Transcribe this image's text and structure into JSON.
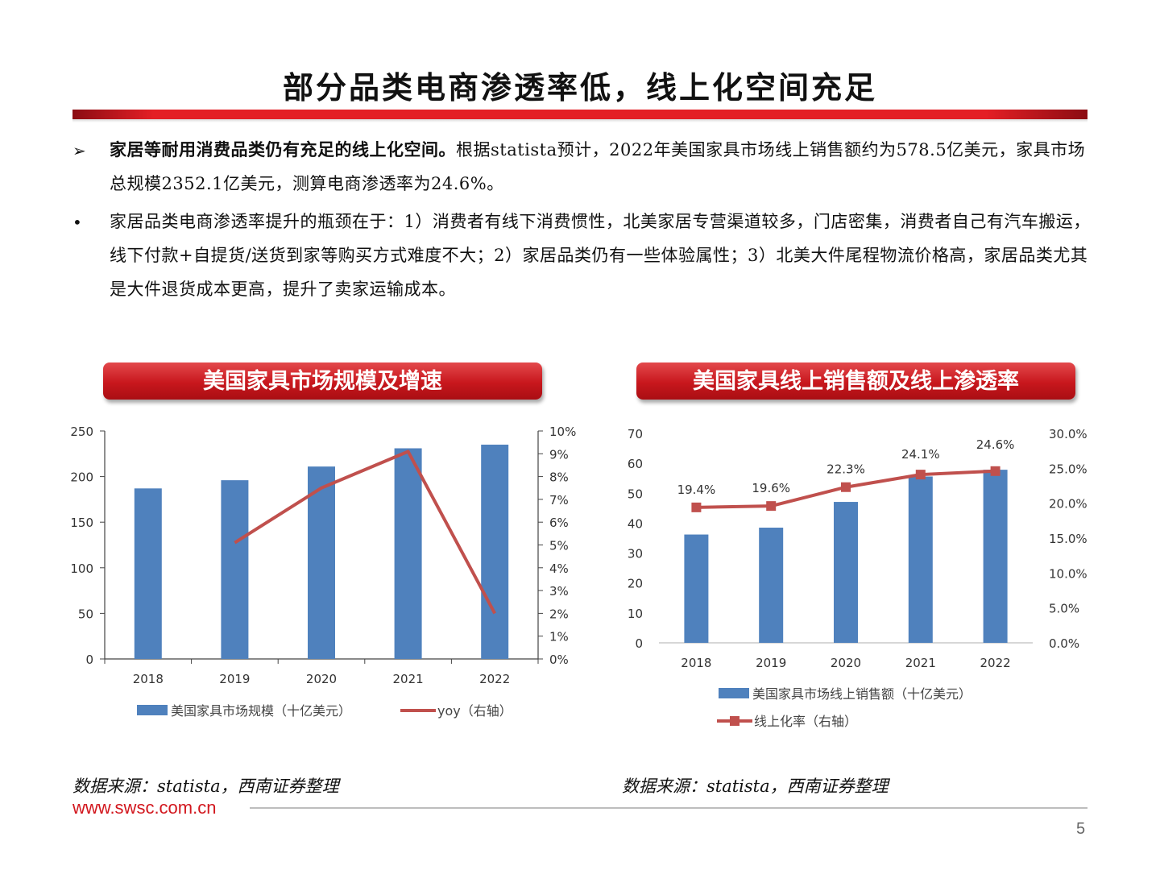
{
  "page": {
    "title": "部分品类电商渗透率低，线上化空间充足",
    "page_number": "5",
    "footer_url": "www.swsc.com.cn"
  },
  "bullets": [
    {
      "marker": "➢",
      "bold_text": "家居等耐用消费品类仍有充足的线上化空间。",
      "text": "根据statista预计，2022年美国家具市场线上销售额约为578.5亿美元，家具市场总规模2352.1亿美元，测算电商渗透率为24.6%。"
    },
    {
      "marker": "•",
      "bold_text": "",
      "text": "家居品类电商渗透率提升的瓶颈在于：1）消费者有线下消费惯性，北美家居专营渠道较多，门店密集，消费者自己有汽车搬运，线下付款+自提货/送货到家等购买方式难度不大；2）家居品类仍有一些体验属性；3）北美大件尾程物流价格高，家居品类尤其是大件退货成本更高，提升了卖家运输成本。"
    }
  ],
  "chart_titles": {
    "left": "美国家具市场规模及增速",
    "right": "美国家具线上销售额及线上渗透率"
  },
  "sources": {
    "left": "数据来源：statista，西南证券整理",
    "right": "数据来源：statista，西南证券整理"
  },
  "colors": {
    "bar": "#4f81bd",
    "line": "#c0504d",
    "accent": "#e41f25"
  },
  "chart_data": [
    {
      "type": "bar",
      "categories": [
        "2018",
        "2019",
        "2020",
        "2021",
        "2022"
      ],
      "series": [
        {
          "name": "美国家具市场规模（十亿美元）",
          "type": "bar",
          "axis": "left",
          "values": [
            187,
            196,
            211,
            231,
            235
          ]
        },
        {
          "name": "yoy（右轴）",
          "type": "line",
          "axis": "right",
          "values": [
            null,
            5.1,
            7.5,
            9.1,
            2.0
          ]
        }
      ],
      "y_left": {
        "min": 0,
        "max": 250,
        "step": 50,
        "ticks": [
          "0",
          "50",
          "100",
          "150",
          "200",
          "250"
        ]
      },
      "y_right": {
        "min": 0,
        "max": 10,
        "step": 1,
        "ticks": [
          "0%",
          "1%",
          "2%",
          "3%",
          "4%",
          "5%",
          "6%",
          "7%",
          "8%",
          "9%",
          "10%"
        ]
      },
      "legend": "bottom"
    },
    {
      "type": "bar",
      "categories": [
        "2018",
        "2019",
        "2020",
        "2021",
        "2022"
      ],
      "series": [
        {
          "name": "美国家具市场线上销售额（十亿美元）",
          "type": "bar",
          "axis": "left",
          "values": [
            36.2,
            38.5,
            47.1,
            55.6,
            57.85
          ]
        },
        {
          "name": "线上化率（右轴）",
          "type": "line",
          "axis": "right",
          "values": [
            19.4,
            19.6,
            22.3,
            24.1,
            24.6
          ],
          "labels": [
            "19.4%",
            "19.6%",
            "22.3%",
            "24.1%",
            "24.6%"
          ]
        }
      ],
      "y_left": {
        "min": 0,
        "max": 70,
        "step": 10,
        "ticks": [
          "0",
          "10",
          "20",
          "30",
          "40",
          "50",
          "60",
          "70"
        ]
      },
      "y_right": {
        "min": 0,
        "max": 30,
        "step": 5,
        "ticks": [
          "0.0%",
          "5.0%",
          "10.0%",
          "15.0%",
          "20.0%",
          "25.0%",
          "30.0%"
        ]
      },
      "legend": "bottom"
    }
  ]
}
